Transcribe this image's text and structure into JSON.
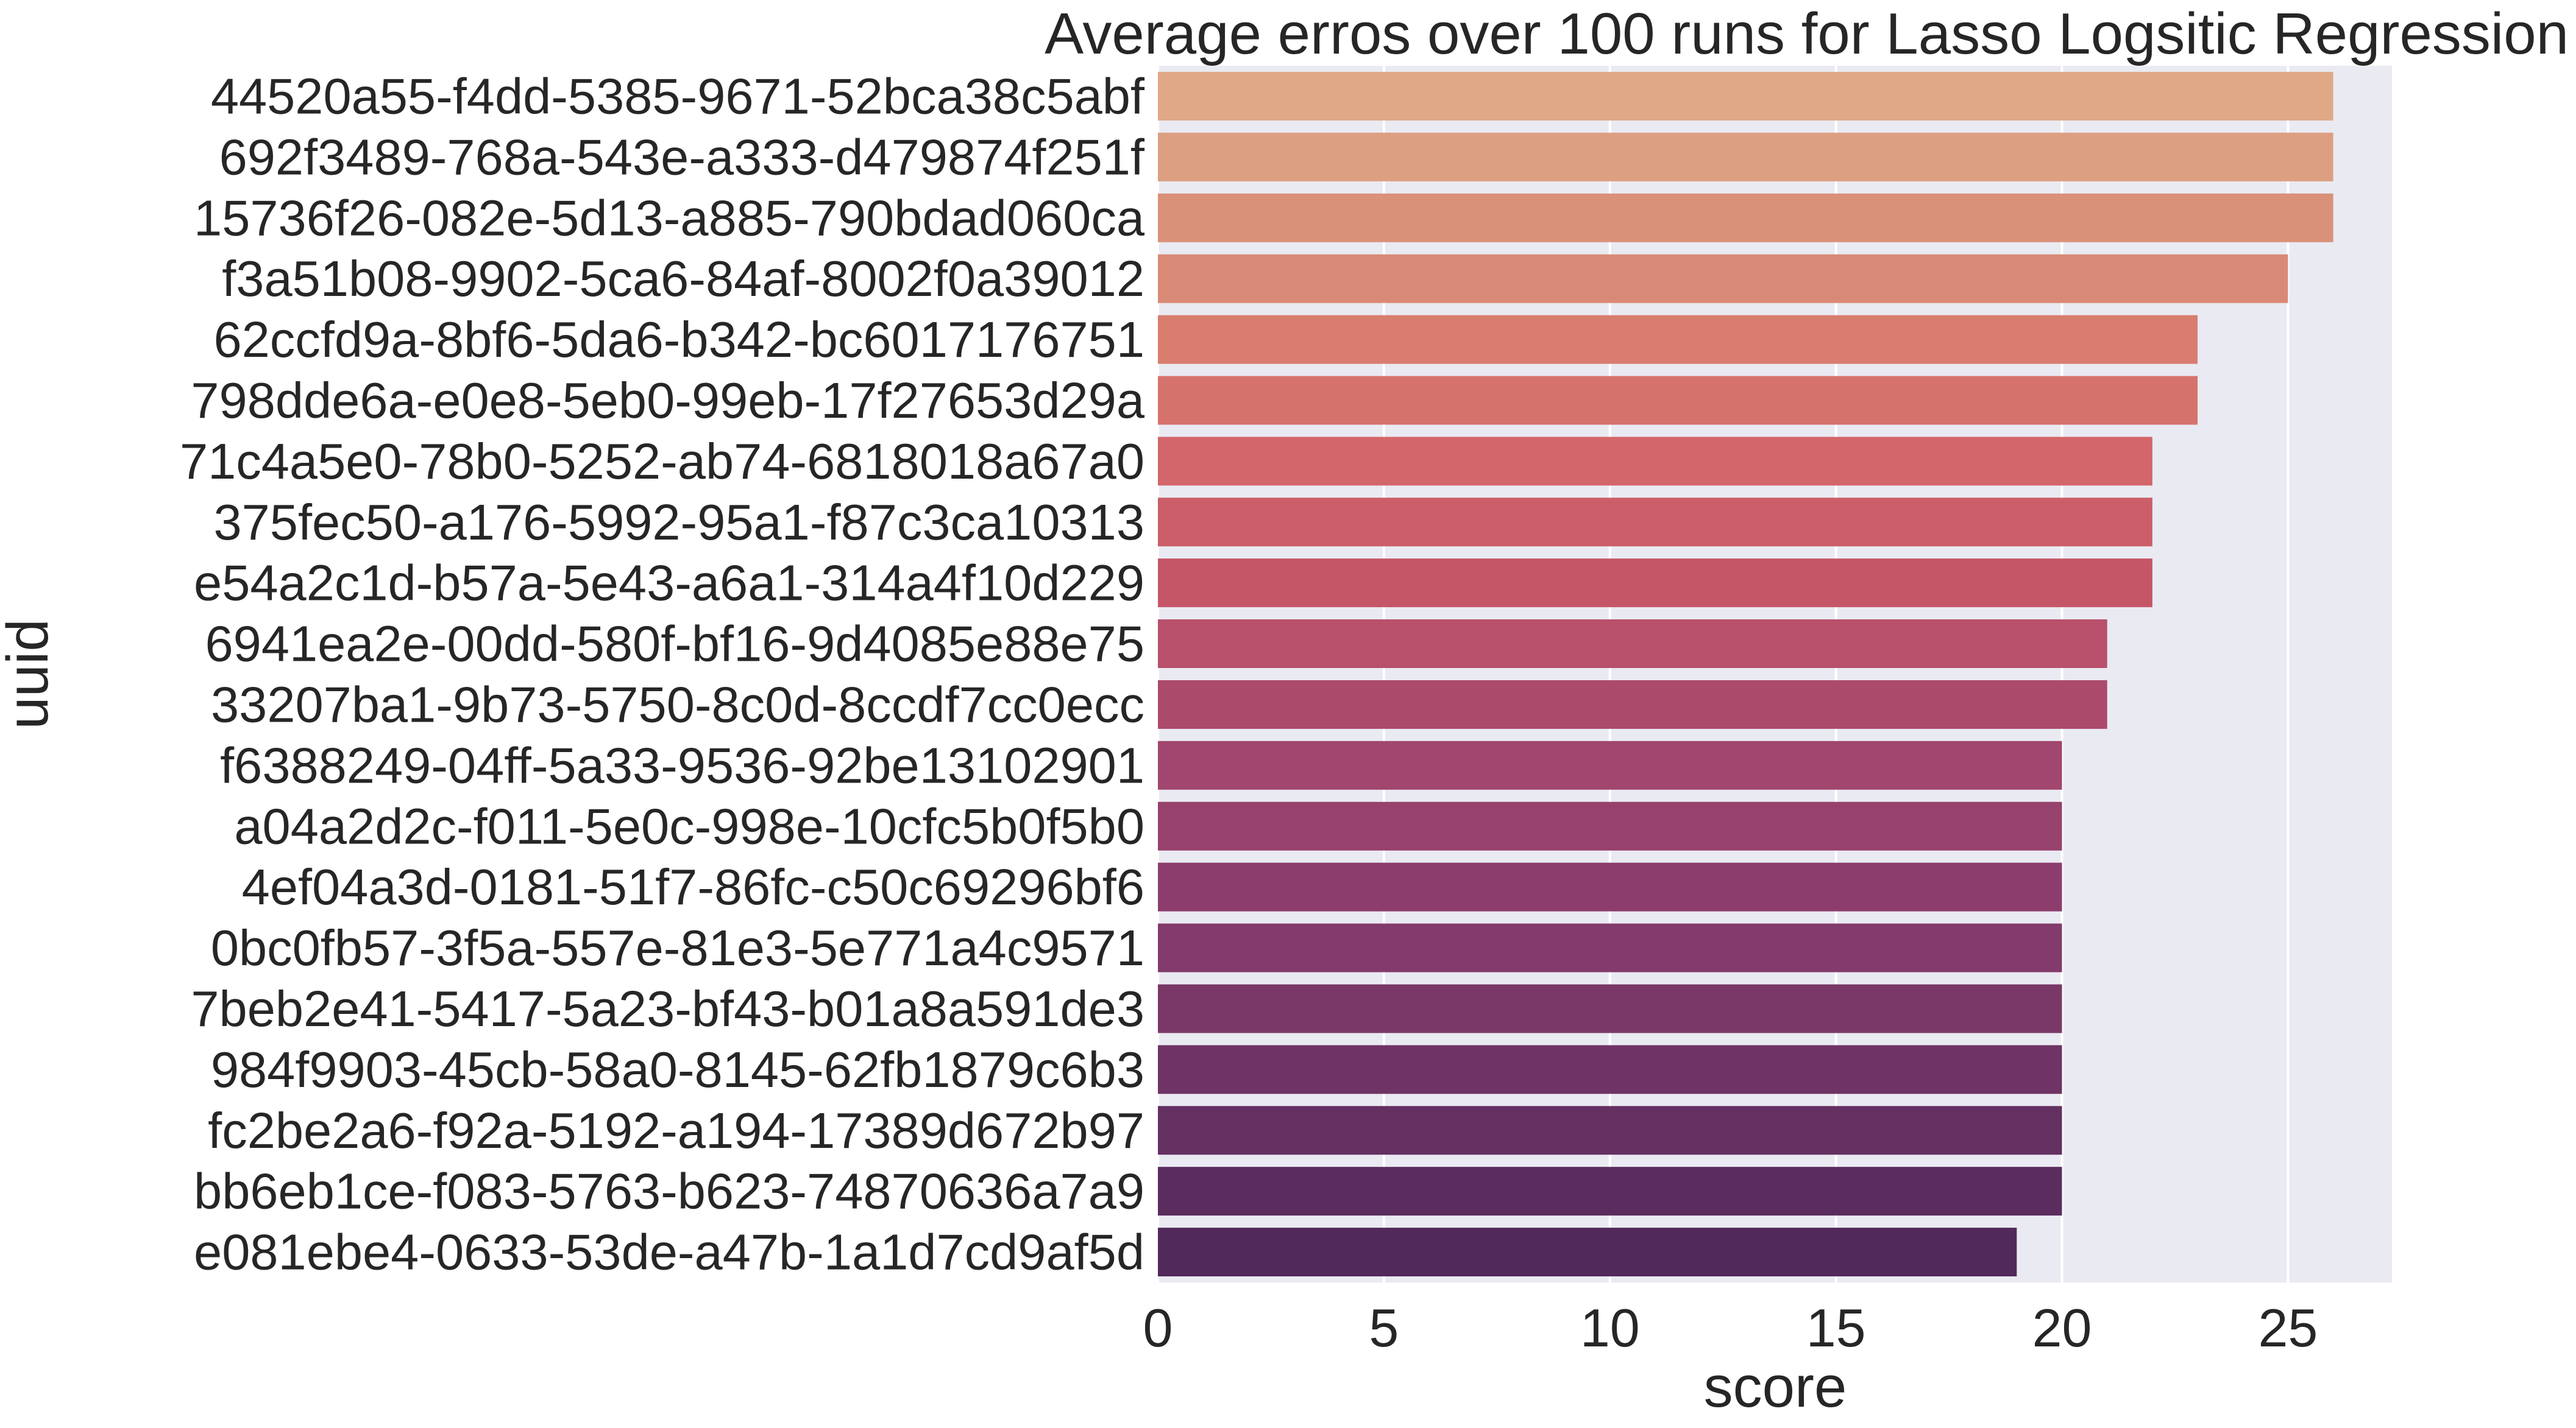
{
  "chart_data": {
    "type": "bar",
    "orientation": "horizontal",
    "title": "Average erros over 100 runs for Lasso Logsitic Regression",
    "xlabel": "score",
    "ylabel": "uuid",
    "xlim": [
      0,
      27.3
    ],
    "xticks": [
      0,
      5,
      10,
      15,
      20,
      25
    ],
    "grid": true,
    "legend": "none",
    "background_color": "#eaeaf2",
    "grid_color": "#ffffff",
    "categories": [
      "44520a55-f4dd-5385-9671-52bca38c5abf",
      "692f3489-768a-543e-a333-d479874f251f",
      "15736f26-082e-5d13-a885-790bdad060ca",
      "f3a51b08-9902-5ca6-84af-8002f0a39012",
      "62ccfd9a-8bf6-5da6-b342-bc6017176751",
      "798dde6a-e0e8-5eb0-99eb-17f27653d29a",
      "71c4a5e0-78b0-5252-ab74-6818018a67a0",
      "375fec50-a176-5992-95a1-f87c3ca10313",
      "e54a2c1d-b57a-5e43-a6a1-314a4f10d229",
      "6941ea2e-00dd-580f-bf16-9d4085e88e75",
      "33207ba1-9b73-5750-8c0d-8ccdf7cc0ecc",
      "f6388249-04ff-5a33-9536-92be13102901",
      "a04a2d2c-f011-5e0c-998e-10cfc5b0f5b0",
      "4ef04a3d-0181-51f7-86fc-c50c69296bf6",
      "0bc0fb57-3f5a-557e-81e3-5e771a4c9571",
      "7beb2e41-5417-5a23-bf43-b01a8a591de3",
      "984f9903-45cb-58a0-8145-62fb1879c6b3",
      "fc2be2a6-f92a-5192-a194-17389d672b97",
      "bb6eb1ce-f083-5763-b623-74870636a7a9",
      "e081ebe4-0633-53de-a47b-1a1d7cd9af5d"
    ],
    "values": [
      26,
      26,
      26,
      25,
      23,
      23,
      22,
      22,
      22,
      21,
      21,
      20,
      20,
      20,
      20,
      20,
      20,
      20,
      20,
      19
    ],
    "colors": [
      "#e0a886",
      "#dd9f81",
      "#da917a",
      "#d98a76",
      "#d97d6f",
      "#d6726c",
      "#d3666a",
      "#cb5e69",
      "#c55668",
      "#b8506b",
      "#ac4a6c",
      "#a1466e",
      "#97416d",
      "#8c3d6d",
      "#833a6c",
      "#7a3868",
      "#6f3365",
      "#643062",
      "#5b2d5f",
      "#512a5a"
    ]
  }
}
